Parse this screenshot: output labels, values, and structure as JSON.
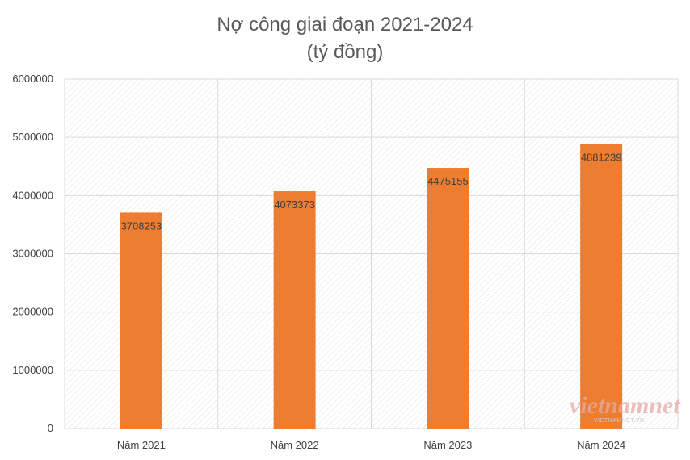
{
  "chart_data": {
    "type": "bar",
    "title": "Nợ công giai đoạn 2021-2024",
    "subtitle": "(tỷ đồng)",
    "categories": [
      "Năm 2021",
      "Năm 2022",
      "Năm 2023",
      "Năm 2024"
    ],
    "values": [
      3708253,
      4073373,
      4475155,
      4881239
    ],
    "data_labels": [
      "3708253",
      "4073373",
      "4475155",
      "4881239"
    ],
    "ylim": [
      0,
      6000000
    ],
    "yticks": [
      0,
      1000000,
      2000000,
      3000000,
      4000000,
      5000000,
      6000000
    ],
    "ytick_labels": [
      "0",
      "1000000",
      "2000000",
      "3000000",
      "4000000",
      "5000000",
      "6000000"
    ],
    "bar_color": "#ED7D31",
    "grid": true,
    "legend": "none"
  },
  "watermark": {
    "text": "vietnamnet",
    "sub": "VIETNAMNET.VN"
  }
}
